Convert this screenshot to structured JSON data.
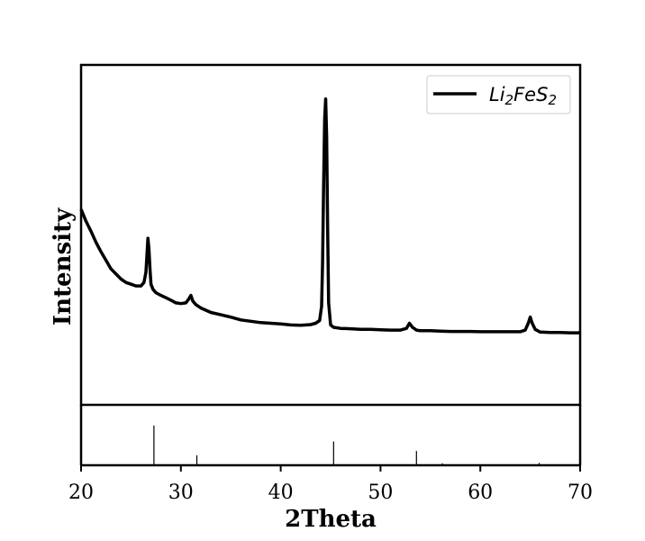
{
  "chart_data": {
    "type": "line",
    "xlabel": "2Theta",
    "ylabel": "Intensity",
    "xlim": [
      20,
      70
    ],
    "xticks": [
      "20",
      "30",
      "40",
      "50",
      "60",
      "70"
    ],
    "legend": {
      "position": "top-right",
      "base": "Li",
      "sub1": "2",
      "mid": "FeS",
      "sub2": "2"
    },
    "ylim": [
      0,
      1000
    ],
    "series": [
      {
        "name": "Li2FeS2",
        "color": "#000000",
        "x": [
          20.0,
          20.5,
          21.0,
          21.5,
          22.0,
          22.5,
          23.0,
          23.5,
          24.0,
          24.5,
          25.0,
          25.5,
          26.0,
          26.3,
          26.5,
          26.6,
          26.7,
          26.8,
          26.9,
          27.0,
          27.2,
          27.5,
          28.0,
          28.5,
          29.0,
          29.5,
          30.0,
          30.5,
          30.8,
          31.0,
          31.2,
          31.5,
          32.0,
          33.0,
          34.0,
          35.0,
          36.0,
          37.0,
          38.0,
          39.0,
          40.0,
          41.0,
          42.0,
          43.0,
          43.5,
          43.9,
          44.1,
          44.2,
          44.3,
          44.4,
          44.5,
          44.6,
          44.7,
          44.8,
          45.0,
          45.3,
          46.0,
          47.0,
          48.0,
          49.0,
          50.0,
          51.0,
          52.0,
          52.6,
          52.9,
          53.2,
          53.6,
          54.0,
          55.0,
          56.0,
          57.0,
          58.0,
          59.0,
          60.0,
          61.0,
          62.0,
          63.0,
          64.0,
          64.5,
          64.8,
          65.0,
          65.2,
          65.5,
          66.0,
          67.0,
          68.0,
          69.0,
          70.0
        ],
        "values": [
          575,
          540,
          510,
          478,
          450,
          425,
          400,
          385,
          370,
          360,
          355,
          350,
          350,
          360,
          390,
          440,
          490,
          460,
          400,
          355,
          340,
          330,
          322,
          315,
          308,
          300,
          298,
          300,
          312,
          322,
          305,
          295,
          285,
          272,
          265,
          258,
          250,
          246,
          242,
          240,
          238,
          235,
          234,
          236,
          240,
          248,
          290,
          420,
          640,
          840,
          900,
          790,
          520,
          300,
          235,
          228,
          225,
          224,
          222,
          222,
          221,
          220,
          220,
          225,
          240,
          228,
          220,
          218,
          218,
          217,
          216,
          216,
          216,
          215,
          215,
          215,
          215,
          215,
          220,
          240,
          258,
          240,
          222,
          214,
          213,
          213,
          212,
          212
        ]
      }
    ],
    "reference": {
      "positions": [
        27.3,
        31.6,
        45.3,
        53.6,
        56.2,
        65.9
      ],
      "heights": [
        1.0,
        0.25,
        0.6,
        0.36,
        0.05,
        0.06
      ]
    }
  }
}
